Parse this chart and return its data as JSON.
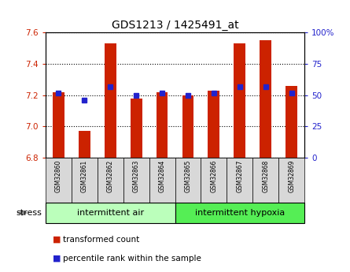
{
  "title": "GDS1213 / 1425491_at",
  "samples": [
    "GSM32860",
    "GSM32861",
    "GSM32862",
    "GSM32863",
    "GSM32864",
    "GSM32865",
    "GSM32866",
    "GSM32867",
    "GSM32868",
    "GSM32869"
  ],
  "transformed_count": [
    7.22,
    6.97,
    7.53,
    7.18,
    7.22,
    7.2,
    7.23,
    7.53,
    7.55,
    7.26
  ],
  "percentile_rank": [
    52,
    46,
    57,
    50,
    52,
    50,
    52,
    57,
    57,
    52
  ],
  "ylim_left": [
    6.8,
    7.6
  ],
  "ylim_right": [
    0,
    100
  ],
  "yticks_left": [
    6.8,
    7.0,
    7.2,
    7.4,
    7.6
  ],
  "yticks_right": [
    0,
    25,
    50,
    75,
    100
  ],
  "bar_color": "#cc2200",
  "dot_color": "#2222cc",
  "group1_label": "intermittent air",
  "group2_label": "intermittent hypoxia",
  "group1_color": "#bbffbb",
  "group2_color": "#55ee55",
  "stress_label": "stress",
  "legend_bar_label": "transformed count",
  "legend_dot_label": "percentile rank within the sample",
  "bg_color": "#d8d8d8",
  "plot_bg": "#ffffff",
  "n_group1": 5,
  "n_group2": 5
}
